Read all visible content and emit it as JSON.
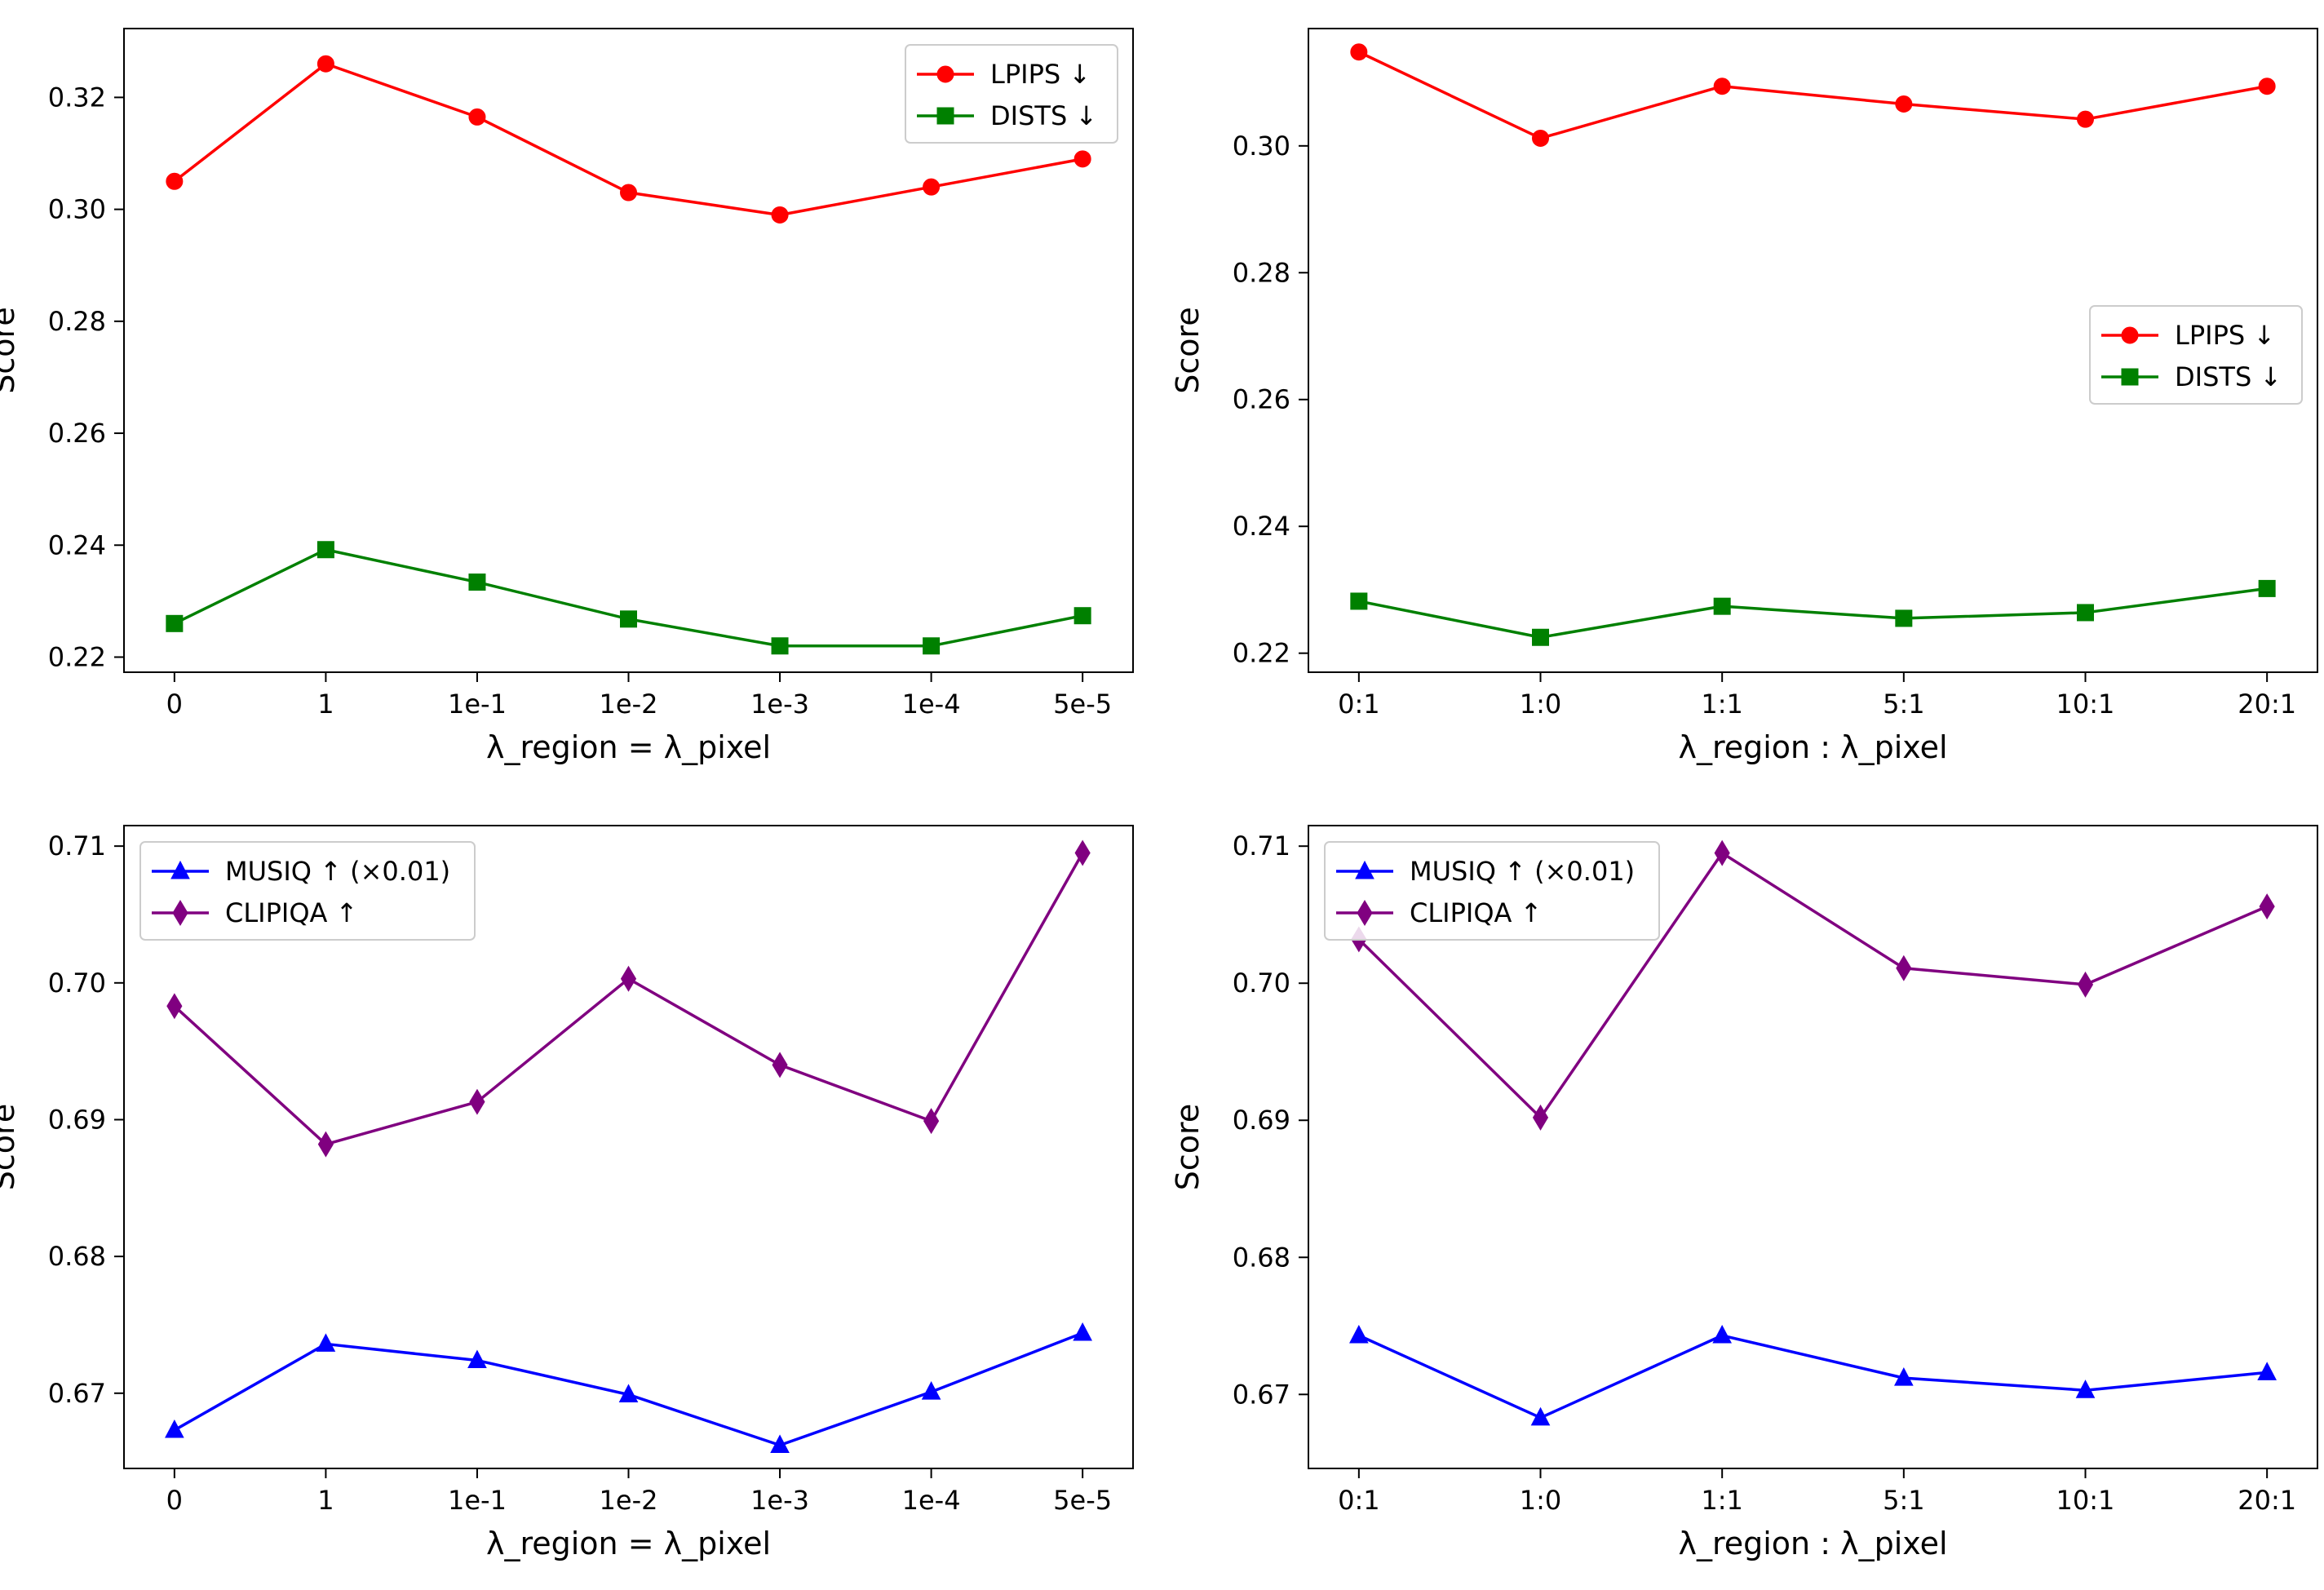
{
  "chart_data": [
    {
      "type": "line",
      "panel": "top-left",
      "title": "",
      "xlabel": "λ_region = λ_pixel",
      "ylabel": "Score",
      "categories": [
        "0",
        "1",
        "1e-1",
        "1e-2",
        "1e-3",
        "1e-4",
        "5e-5"
      ],
      "ylim": [
        0.2173,
        0.3323
      ],
      "yticks": [
        0.22,
        0.24,
        0.26,
        0.28,
        0.3,
        0.32
      ],
      "ytick_labels": [
        "0.22",
        "0.24",
        "0.26",
        "0.28",
        "0.30",
        "0.32"
      ],
      "legend_position": "top-right",
      "series": [
        {
          "name": "LPIPS ↓",
          "color": "#ff0000",
          "marker": "circle",
          "values": [
            0.305,
            0.326,
            0.3165,
            0.303,
            0.299,
            0.304,
            0.309
          ]
        },
        {
          "name": "DISTS ↓",
          "color": "#008000",
          "marker": "square",
          "values": [
            0.226,
            0.2392,
            0.2334,
            0.2268,
            0.222,
            0.222,
            0.2274
          ]
        }
      ]
    },
    {
      "type": "line",
      "panel": "top-right",
      "title": "",
      "xlabel": "λ_region : λ_pixel",
      "ylabel": "Score",
      "categories": [
        "0:1",
        "1:0",
        "1:1",
        "5:1",
        "10:1",
        "20:1"
      ],
      "ylim": [
        0.217,
        0.3185
      ],
      "yticks": [
        0.22,
        0.24,
        0.26,
        0.28,
        0.3
      ],
      "ytick_labels": [
        "0.22",
        "0.24",
        "0.26",
        "0.28",
        "0.30"
      ],
      "legend_position": "center-right",
      "series": [
        {
          "name": "LPIPS ↓",
          "color": "#ff0000",
          "marker": "circle",
          "values": [
            0.3148,
            0.3012,
            0.3094,
            0.3066,
            0.3042,
            0.3094
          ]
        },
        {
          "name": "DISTS ↓",
          "color": "#008000",
          "marker": "square",
          "values": [
            0.2282,
            0.2225,
            0.2274,
            0.2255,
            0.2264,
            0.2302
          ]
        }
      ]
    },
    {
      "type": "line",
      "panel": "bottom-left",
      "title": "",
      "xlabel": "λ_region = λ_pixel",
      "ylabel": "Score",
      "categories": [
        "0",
        "1",
        "1e-1",
        "1e-2",
        "1e-3",
        "1e-4",
        "5e-5"
      ],
      "ylim": [
        0.6645,
        0.7115
      ],
      "yticks": [
        0.67,
        0.68,
        0.69,
        0.7,
        0.71
      ],
      "ytick_labels": [
        "0.67",
        "0.68",
        "0.69",
        "0.70",
        "0.71"
      ],
      "legend_position": "top-left",
      "series": [
        {
          "name": "MUSIQ ↑ (×0.01)",
          "color": "#0000ff",
          "marker": "triangle",
          "values": [
            0.6673,
            0.6736,
            0.6724,
            0.6699,
            0.6662,
            0.6701,
            0.6744
          ]
        },
        {
          "name": "CLIPIQA ↑",
          "color": "#800080",
          "marker": "diamond",
          "values": [
            0.6983,
            0.6882,
            0.6913,
            0.7003,
            0.694,
            0.6899,
            0.7095
          ]
        }
      ]
    },
    {
      "type": "line",
      "panel": "bottom-right",
      "title": "",
      "xlabel": "λ_region : λ_pixel",
      "ylabel": "Score",
      "categories": [
        "0:1",
        "1:0",
        "1:1",
        "5:1",
        "10:1",
        "20:1"
      ],
      "ylim": [
        0.6646,
        0.7115
      ],
      "yticks": [
        0.67,
        0.68,
        0.69,
        0.7,
        0.71
      ],
      "ytick_labels": [
        "0.67",
        "0.68",
        "0.69",
        "0.70",
        "0.71"
      ],
      "legend_position": "top-left",
      "series": [
        {
          "name": "MUSIQ ↑ (×0.01)",
          "color": "#0000ff",
          "marker": "triangle",
          "values": [
            0.6743,
            0.6683,
            0.6743,
            0.6712,
            0.6703,
            0.6716
          ]
        },
        {
          "name": "CLIPIQA ↑",
          "color": "#800080",
          "marker": "diamond",
          "values": [
            0.7032,
            0.6902,
            0.7095,
            0.7011,
            0.6999,
            0.7056
          ]
        }
      ]
    }
  ]
}
